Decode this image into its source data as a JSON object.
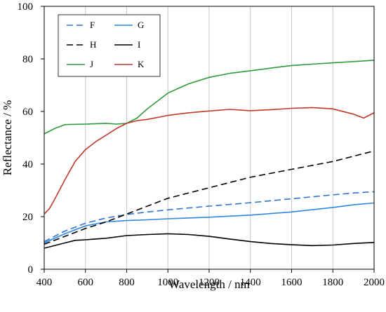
{
  "chart_data": {
    "type": "line",
    "title": "",
    "xlabel": "Wavelength / nm",
    "ylabel": "Reflectance / %",
    "xlim": [
      400,
      2000
    ],
    "ylim": [
      0,
      100
    ],
    "x_ticks": [
      "400",
      "600",
      "800",
      "1000",
      "1200",
      "1400",
      "1600",
      "1800",
      "2000"
    ],
    "y_ticks": [
      "0",
      "20",
      "40",
      "60",
      "80",
      "100"
    ],
    "grid": "vertical",
    "legend_position": "top-left",
    "series": [
      {
        "name": "F",
        "color": "#2e75d0",
        "dash": "dash",
        "x": [
          400,
          500,
          600,
          700,
          800,
          900,
          1000,
          1200,
          1400,
          1600,
          1800,
          1900,
          2000
        ],
        "y": [
          10.5,
          14.5,
          17.5,
          19.5,
          20.8,
          21.8,
          22.6,
          24.0,
          25.3,
          26.8,
          28.3,
          29.0,
          29.5
        ]
      },
      {
        "name": "G",
        "color": "#2e86e0",
        "dash": "solid",
        "x": [
          400,
          500,
          600,
          700,
          800,
          900,
          1000,
          1200,
          1400,
          1600,
          1800,
          1900,
          2000
        ],
        "y": [
          10.0,
          13.5,
          16.5,
          18.0,
          18.5,
          18.8,
          19.2,
          19.8,
          20.6,
          21.8,
          23.5,
          24.5,
          25.2
        ]
      },
      {
        "name": "H",
        "color": "#000000",
        "dash": "dash",
        "x": [
          400,
          500,
          600,
          700,
          800,
          900,
          1000,
          1200,
          1400,
          1600,
          1800,
          1900,
          2000
        ],
        "y": [
          9.5,
          12.5,
          15.5,
          18.0,
          21.0,
          24.0,
          27.0,
          31.0,
          35.0,
          38.0,
          41.0,
          43.0,
          45.0
        ]
      },
      {
        "name": "I",
        "color": "#000000",
        "dash": "solid",
        "x": [
          400,
          500,
          550,
          600,
          700,
          800,
          900,
          1000,
          1100,
          1200,
          1300,
          1400,
          1500,
          1600,
          1700,
          1800,
          1900,
          2000
        ],
        "y": [
          8.0,
          10.0,
          11.0,
          11.2,
          11.8,
          12.8,
          13.2,
          13.5,
          13.2,
          12.5,
          11.5,
          10.5,
          9.8,
          9.3,
          9.0,
          9.2,
          9.8,
          10.2
        ]
      },
      {
        "name": "J",
        "color": "#2f9a3c",
        "dash": "solid",
        "x": [
          400,
          450,
          500,
          600,
          700,
          750,
          800,
          850,
          900,
          1000,
          1100,
          1200,
          1300,
          1400,
          1500,
          1600,
          1700,
          1800,
          1900,
          2000
        ],
        "y": [
          51.5,
          53.5,
          55.0,
          55.2,
          55.5,
          55.2,
          55.5,
          57.5,
          61.0,
          67.0,
          70.5,
          73.0,
          74.5,
          75.5,
          76.5,
          77.5,
          78.0,
          78.5,
          79.0,
          79.5
        ]
      },
      {
        "name": "K",
        "color": "#c0392b",
        "dash": "solid",
        "x": [
          400,
          425,
          450,
          500,
          550,
          600,
          650,
          700,
          750,
          800,
          850,
          900,
          1000,
          1100,
          1200,
          1300,
          1400,
          1500,
          1600,
          1700,
          1800,
          1900,
          1950,
          2000
        ],
        "y": [
          21.0,
          23.0,
          26.5,
          34.0,
          41.0,
          45.5,
          48.5,
          51.0,
          53.5,
          55.5,
          56.5,
          57.0,
          58.5,
          59.5,
          60.2,
          60.8,
          60.3,
          60.7,
          61.2,
          61.5,
          61.0,
          59.0,
          57.5,
          59.5
        ]
      }
    ]
  }
}
